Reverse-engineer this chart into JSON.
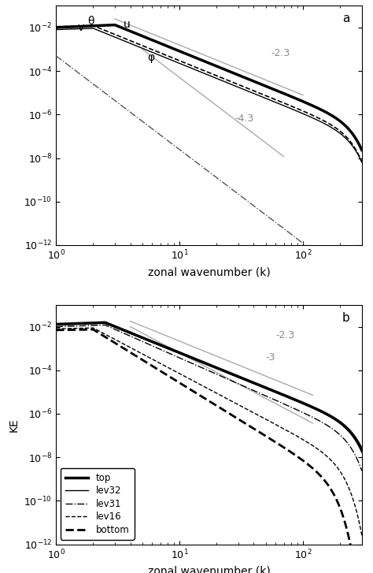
{
  "xlabel": "zonal wavenumber (k)",
  "ylabel_b": "KE",
  "slope_23_label": "-2.3",
  "slope_43_label": "-4.3",
  "slope_23_label_b": "-2.3",
  "slope_3_label_b": "-3",
  "label_color": "#aaaaaa",
  "panel_a_labels": {
    "theta": "θ",
    "v": "v",
    "u": "u",
    "phi": "φ"
  },
  "legend_entries": [
    "top",
    "lev32",
    "lev31",
    "lev16",
    "bottom"
  ]
}
